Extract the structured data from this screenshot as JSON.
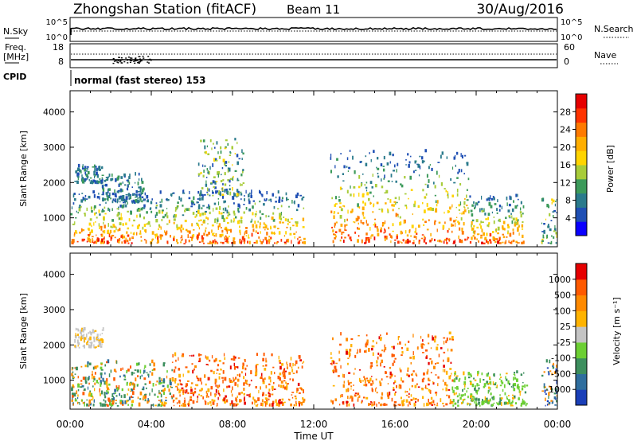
{
  "header": {
    "station": "Zhongshan Station (fitACF)",
    "beam": "Beam 11",
    "date": "30/Aug/2016"
  },
  "panels": {
    "nsky": {
      "left_label": "N.Sky",
      "left_ticks": [
        "10^5",
        "10^0"
      ],
      "right_ticks": [
        "10^5",
        "10^0"
      ],
      "right_label": "N.Search"
    },
    "freq": {
      "left_label_1": "Freq.",
      "left_label_2": "[MHz]",
      "left_ticks": [
        "18",
        "8"
      ],
      "right_ticks": [
        "60",
        "0"
      ],
      "right_label": "Nave"
    },
    "cpid": {
      "label": "CPID",
      "value": "normal (fast stereo) 153"
    }
  },
  "chart_data": [
    {
      "type": "heatmap",
      "name": "power",
      "ylabel": "Slant Range [km]",
      "yticks": [
        1000,
        2000,
        3000,
        4000
      ],
      "ylim": [
        180,
        4600
      ],
      "xlim": [
        0,
        24
      ],
      "colorbar": {
        "label": "Power [dB]",
        "ticks": [
          "28",
          "24",
          "20",
          "16",
          "12",
          "8",
          "4"
        ],
        "colors": [
          "#0a00ff",
          "#1f4fb4",
          "#2a7a8c",
          "#3c9a5a",
          "#a8cc3a",
          "#ffd400",
          "#ffae00",
          "#ff7a00",
          "#ff3300",
          "#e60000"
        ]
      },
      "echo_regions": [
        {
          "t0": 0.0,
          "t1": 11.5,
          "r0": 250,
          "r1": 1700,
          "level": "high"
        },
        {
          "t0": 0.2,
          "t1": 1.6,
          "r0": 1950,
          "r1": 2450,
          "level": "low"
        },
        {
          "t0": 1.5,
          "t1": 3.6,
          "r0": 1400,
          "r1": 2200,
          "level": "low"
        },
        {
          "t0": 6.3,
          "t1": 8.5,
          "r0": 1600,
          "r1": 3200,
          "level": "mid"
        },
        {
          "t0": 12.8,
          "t1": 19.6,
          "r0": 250,
          "r1": 2900,
          "level": "high"
        },
        {
          "t0": 19.6,
          "t1": 22.3,
          "r0": 250,
          "r1": 1600,
          "level": "high"
        },
        {
          "t0": 23.2,
          "t1": 24.0,
          "r0": 250,
          "r1": 1500,
          "level": "mid"
        }
      ]
    },
    {
      "type": "heatmap",
      "name": "velocity",
      "ylabel": "Slant Range [km]",
      "yticks": [
        1000,
        2000,
        3000,
        4000
      ],
      "ylim": [
        180,
        4600
      ],
      "xlim": [
        0,
        24
      ],
      "xticks": [
        "00:00",
        "04:00",
        "08:00",
        "12:00",
        "16:00",
        "20:00",
        "00:00"
      ],
      "xlabel": "Time UT",
      "colorbar": {
        "label": "Velocity [m s⁻¹]",
        "ticks": [
          "1000",
          "500",
          "100",
          "25",
          "-25",
          "-100",
          "-500",
          "-1000"
        ],
        "colors": [
          "#1a3fb8",
          "#2f6e9e",
          "#3d8f5e",
          "#6ccf33",
          "#c4c4c4",
          "#ffb300",
          "#ff8a00",
          "#ff5a00",
          "#e60000"
        ]
      },
      "echo_regions": [
        {
          "t0": 0.0,
          "t1": 5.0,
          "r0": 250,
          "r1": 1500,
          "level": "mixed"
        },
        {
          "t0": 0.2,
          "t1": 1.6,
          "r0": 1900,
          "r1": 2450,
          "level": "gray"
        },
        {
          "t0": 5.0,
          "t1": 11.5,
          "r0": 250,
          "r1": 1700,
          "level": "orange"
        },
        {
          "t0": 12.8,
          "t1": 18.8,
          "r0": 250,
          "r1": 2300,
          "level": "orange"
        },
        {
          "t0": 18.8,
          "t1": 22.5,
          "r0": 250,
          "r1": 1200,
          "level": "green"
        },
        {
          "t0": 23.2,
          "t1": 24.0,
          "r0": 250,
          "r1": 1500,
          "level": "blue"
        }
      ]
    }
  ]
}
